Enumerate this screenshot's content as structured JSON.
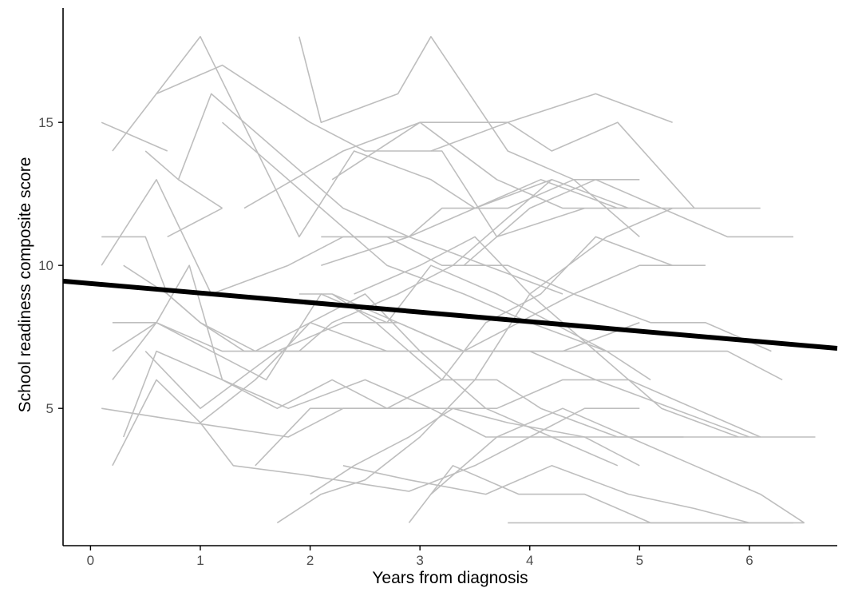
{
  "chart_data": {
    "type": "line",
    "xlabel": "Years from diagnosis",
    "ylabel": "School readiness composite score",
    "xlim": [
      -0.25,
      6.8
    ],
    "ylim": [
      0.2,
      19
    ],
    "x_ticks": [
      0,
      1,
      2,
      3,
      4,
      5,
      6
    ],
    "y_ticks": [
      5,
      10,
      15
    ],
    "grid": false,
    "legend": "none",
    "colors": {
      "individual": "#bebebe",
      "trend": "#000000",
      "axis": "#000000",
      "tick_text": "#4d4d4d"
    },
    "trend_line": {
      "x": [
        -0.25,
        6.8
      ],
      "y": [
        9.45,
        7.1
      ]
    },
    "series": [
      {
        "x": [
          0.2,
          1.0,
          1.9,
          2.4,
          3.1,
          3.5,
          4.2
        ],
        "y": [
          14,
          18,
          11,
          14,
          13,
          12,
          13
        ]
      },
      {
        "x": [
          0.1,
          0.7
        ],
        "y": [
          15,
          14
        ]
      },
      {
        "x": [
          0.5,
          0.8,
          1.2
        ],
        "y": [
          14,
          13,
          12
        ]
      },
      {
        "x": [
          0.7,
          1.2
        ],
        "y": [
          11,
          12
        ]
      },
      {
        "x": [
          0.6,
          1.2,
          2.0,
          2.5,
          3.2,
          3.7,
          4.5
        ],
        "y": [
          16,
          17,
          15,
          14,
          14,
          11,
          12
        ]
      },
      {
        "x": [
          0.8,
          1.1,
          1.7,
          2.3,
          2.9,
          3.6,
          4.3
        ],
        "y": [
          13,
          16,
          14,
          12,
          11,
          10,
          9
        ]
      },
      {
        "x": [
          1.2,
          2.1,
          2.7,
          3.4,
          4.0,
          4.7
        ],
        "y": [
          15,
          12,
          10,
          9,
          8,
          7
        ]
      },
      {
        "x": [
          1.9,
          2.1,
          2.8,
          3.1,
          3.8,
          4.4,
          5.0
        ],
        "y": [
          18,
          15,
          16,
          18,
          14,
          13,
          11
        ]
      },
      {
        "x": [
          1.4,
          2.3,
          3.0,
          3.7,
          4.3,
          5.0
        ],
        "y": [
          12,
          14,
          15,
          13,
          12,
          12
        ]
      },
      {
        "x": [
          2.2,
          3.0,
          3.8,
          4.2,
          4.8,
          5.5
        ],
        "y": [
          13,
          15,
          15,
          14,
          15,
          12
        ]
      },
      {
        "x": [
          3.1,
          3.8,
          4.6,
          5.3
        ],
        "y": [
          14,
          15,
          16,
          15
        ]
      },
      {
        "x": [
          2.1,
          2.9,
          3.5,
          4.1,
          4.8,
          5.4,
          6.1
        ],
        "y": [
          10,
          11,
          12,
          13,
          12,
          12,
          12
        ]
      },
      {
        "x": [
          0.1,
          0.5,
          0.7,
          1.0,
          1.4,
          1.9,
          2.2,
          2.8,
          3.3,
          3.9,
          4.2,
          4.9
        ],
        "y": [
          11,
          11,
          9,
          8,
          7,
          7,
          8,
          9,
          10,
          12,
          13,
          12
        ]
      },
      {
        "x": [
          0.2,
          0.6,
          0.9,
          1.2,
          1.7,
          2.2,
          2.7,
          3.2,
          3.6,
          4.1,
          4.6,
          5.3
        ],
        "y": [
          6,
          8,
          10,
          6,
          5,
          6,
          5,
          6,
          8,
          9,
          11,
          10
        ]
      },
      {
        "x": [
          0.1,
          0.6,
          1.1,
          1.8,
          2.3,
          2.9,
          3.2,
          3.8,
          4.4,
          5.0
        ],
        "y": [
          10,
          13,
          9,
          10,
          11,
          11,
          12,
          12,
          13,
          13
        ]
      },
      {
        "x": [
          0.3,
          0.7,
          1.0,
          1.5,
          2.0,
          2.7,
          3.3,
          3.8,
          4.3,
          5.0
        ],
        "y": [
          10,
          9,
          8,
          7,
          8,
          7,
          7,
          7,
          7,
          8
        ]
      },
      {
        "x": [
          0.2,
          0.6,
          1.2,
          1.9,
          2.5,
          3.1,
          3.7,
          4.4,
          5.2,
          5.8,
          6.3
        ],
        "y": [
          7,
          8,
          7,
          7,
          7,
          7,
          7,
          7,
          7,
          7,
          6
        ]
      },
      {
        "x": [
          0.2,
          0.6,
          1.1,
          1.6,
          2.1,
          2.7,
          3.1,
          3.7,
          4.2,
          4.7,
          5.1
        ],
        "y": [
          8,
          8,
          7,
          6,
          9,
          8,
          10,
          9,
          8,
          7,
          6
        ]
      },
      {
        "x": [
          0.1,
          0.6,
          1.1,
          1.8,
          2.3,
          2.9
        ],
        "y": [
          5,
          4.7,
          4.4,
          4.0,
          5.0,
          5.0
        ]
      },
      {
        "x": [
          0.2,
          0.6,
          1.0,
          1.3,
          1.9,
          2.4,
          2.9,
          3.5,
          4.0,
          4.5,
          5.0
        ],
        "y": [
          3,
          6,
          4.5,
          3,
          2.7,
          2.4,
          2.1,
          3,
          4,
          5,
          5
        ]
      },
      {
        "x": [
          0.3,
          0.6,
          1.2,
          1.8,
          2.5,
          3.1,
          3.6,
          4.2,
          4.8,
          5.4,
          6.0
        ],
        "y": [
          4,
          7,
          6,
          5,
          6,
          5,
          4,
          4,
          4,
          4,
          4
        ]
      },
      {
        "x": [
          0.5,
          1.0,
          1.7,
          2.3,
          2.8,
          3.4,
          4.0,
          4.6,
          5.3,
          6.0,
          6.6
        ],
        "y": [
          7,
          5,
          7,
          8,
          8,
          7,
          7,
          6,
          5,
          4,
          4
        ]
      },
      {
        "x": [
          1.0,
          1.5,
          2.0,
          2.5,
          3.0,
          3.6,
          4.2,
          4.8
        ],
        "y": [
          4.5,
          6,
          8,
          9,
          7,
          5,
          4,
          3
        ]
      },
      {
        "x": [
          1.5,
          2.0,
          2.6,
          3.1,
          3.7,
          4.3,
          4.9,
          5.5,
          6.1
        ],
        "y": [
          3,
          5,
          5,
          5,
          5,
          6,
          6,
          5,
          4
        ]
      },
      {
        "x": [
          1.9,
          2.2,
          2.6,
          3.2,
          3.7,
          4.1,
          4.8,
          5.4
        ],
        "y": [
          9,
          9,
          8,
          6,
          6,
          5,
          4,
          4
        ]
      },
      {
        "x": [
          2.0,
          2.4,
          2.9,
          3.3,
          3.8,
          4.5,
          5.0
        ],
        "y": [
          2,
          3,
          4,
          5,
          4.5,
          4,
          3
        ]
      },
      {
        "x": [
          1.7,
          2.1,
          2.5,
          3.0,
          3.5,
          4.0,
          4.7,
          5.3
        ],
        "y": [
          1,
          2,
          2.5,
          4,
          6,
          9,
          11,
          12
        ]
      },
      {
        "x": [
          2.2,
          2.8,
          3.4,
          3.9,
          4.4,
          5.0,
          5.6
        ],
        "y": [
          9,
          8,
          7,
          8,
          9,
          10,
          10
        ]
      },
      {
        "x": [
          2.1,
          2.7,
          3.2,
          3.8,
          4.4,
          5.1,
          5.6,
          6.2
        ],
        "y": [
          11,
          11,
          10,
          10,
          9,
          8,
          8,
          7
        ]
      },
      {
        "x": [
          2.4,
          3.0,
          3.5,
          4.0,
          4.6,
          5.2,
          5.9
        ],
        "y": [
          9,
          10,
          11,
          9,
          7,
          5,
          4
        ]
      },
      {
        "x": [
          2.3,
          2.9,
          3.6,
          4.2,
          4.9,
          5.5,
          6.0
        ],
        "y": [
          3,
          2.5,
          2,
          3,
          2,
          1.5,
          1
        ]
      },
      {
        "x": [
          2.9,
          3.3,
          3.9,
          4.5,
          5.1,
          5.8,
          6.4
        ],
        "y": [
          1,
          3,
          2,
          2,
          1,
          1,
          1
        ]
      },
      {
        "x": [
          3.1,
          3.7,
          4.3,
          4.9,
          5.5,
          6.1,
          6.5
        ],
        "y": [
          2,
          4,
          5,
          4,
          3,
          2,
          1
        ]
      },
      {
        "x": [
          3.4,
          4.0,
          4.6,
          5.2,
          5.8,
          6.4
        ],
        "y": [
          10,
          12,
          13,
          12,
          11,
          11
        ]
      },
      {
        "x": [
          3.8,
          4.4,
          5.0,
          5.6,
          6.2,
          6.5
        ],
        "y": [
          1,
          1,
          1,
          1,
          1,
          1
        ]
      }
    ]
  }
}
